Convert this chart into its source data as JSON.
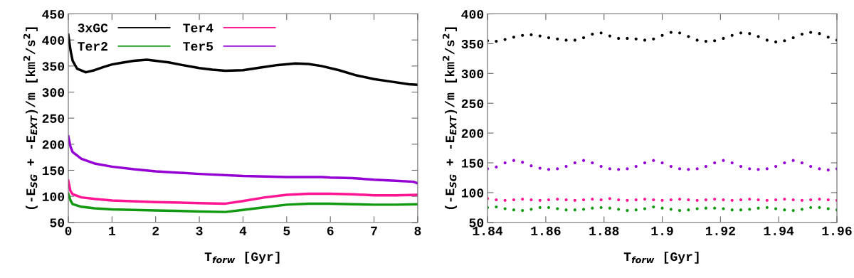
{
  "chart_data": [
    {
      "type": "line",
      "xlabel": "T$_{forw}$ [Gyr]",
      "ylabel": "(-E$_{SG}$ + -E$_{EXT}$)/m [km$^{2}$/s$^{2}$]",
      "xlim": [
        0,
        8
      ],
      "xticks": [
        0,
        1,
        2,
        3,
        4,
        5,
        6,
        7,
        8
      ],
      "ylim": [
        50,
        450
      ],
      "yticks": [
        50,
        100,
        150,
        200,
        250,
        300,
        350,
        400,
        450
      ],
      "grid": false,
      "legend": "top left",
      "marker": "none",
      "line_style": "solid",
      "series": [
        {
          "name": "3xGC",
          "color": "#000000",
          "x": [
            0,
            0.05,
            0.1,
            0.2,
            0.4,
            0.6,
            0.8,
            1.0,
            1.2,
            1.5,
            1.8,
            2.0,
            2.3,
            2.6,
            3.0,
            3.3,
            3.6,
            4.0,
            4.4,
            4.8,
            5.2,
            5.5,
            5.8,
            6.2,
            6.6,
            7.0,
            7.4,
            7.8,
            8.0
          ],
          "values": [
            410,
            380,
            360,
            345,
            338,
            342,
            348,
            353,
            356,
            360,
            362,
            360,
            357,
            352,
            346,
            343,
            341,
            342,
            347,
            352,
            355,
            354,
            350,
            342,
            332,
            325,
            320,
            315,
            314
          ]
        },
        {
          "name": "Ter2",
          "color": "#119911",
          "x": [
            0,
            0.05,
            0.1,
            0.3,
            0.6,
            1,
            2,
            3,
            3.6,
            4.0,
            4.5,
            5.0,
            5.5,
            6.0,
            6.5,
            7.0,
            7.5,
            8.0
          ],
          "values": [
            105,
            92,
            85,
            80,
            77,
            75,
            73,
            71,
            70,
            74,
            79,
            84,
            86,
            86,
            85,
            84,
            84,
            85
          ]
        },
        {
          "name": "Ter4",
          "color": "#ff1493",
          "x": [
            0,
            0.05,
            0.1,
            0.3,
            0.6,
            1,
            2,
            3,
            3.6,
            4.0,
            4.5,
            5.0,
            5.5,
            6.0,
            6.5,
            7.0,
            7.5,
            8.0
          ],
          "values": [
            130,
            110,
            104,
            98,
            95,
            92,
            89,
            87,
            86,
            91,
            98,
            103,
            105,
            105,
            104,
            102,
            102,
            103
          ]
        },
        {
          "name": "Ter5",
          "color": "#9400d3",
          "x": [
            0,
            0.05,
            0.1,
            0.3,
            0.6,
            1.0,
            1.5,
            2.0,
            3.0,
            4.0,
            5.0,
            5.8,
            6.0,
            6.5,
            7.0,
            7.5,
            7.9,
            8.0
          ],
          "values": [
            215,
            195,
            185,
            172,
            163,
            157,
            152,
            148,
            143,
            139,
            137,
            137,
            136,
            135,
            132,
            130,
            128,
            125
          ]
        }
      ]
    },
    {
      "type": "scatter",
      "xlabel": "T$_{forw}$ [Gyr]",
      "ylabel": "(-E$_{SG}$ + -E$_{EXT}$)/m [km$^{2}$/s$^{2}$]",
      "xlim": [
        1.84,
        1.96
      ],
      "xticks": [
        1.84,
        1.86,
        1.88,
        1.9,
        1.92,
        1.94,
        1.96
      ],
      "ylim": [
        50,
        400
      ],
      "yticks": [
        50,
        100,
        150,
        200,
        250,
        300,
        350,
        400
      ],
      "grid": false,
      "marker": "circle",
      "x": [
        1.84,
        1.843,
        1.846,
        1.849,
        1.852,
        1.855,
        1.858,
        1.861,
        1.864,
        1.867,
        1.87,
        1.873,
        1.876,
        1.879,
        1.882,
        1.885,
        1.888,
        1.891,
        1.894,
        1.897,
        1.9,
        1.903,
        1.906,
        1.909,
        1.912,
        1.915,
        1.918,
        1.921,
        1.924,
        1.927,
        1.93,
        1.933,
        1.936,
        1.939,
        1.942,
        1.945,
        1.948,
        1.951,
        1.954,
        1.957,
        1.96
      ],
      "series": [
        {
          "color": "#000000",
          "values": [
            355,
            354,
            357,
            361,
            364,
            365,
            363,
            360,
            358,
            356,
            356,
            360,
            366,
            368,
            363,
            359,
            359,
            358,
            356,
            358,
            364,
            369,
            368,
            362,
            356,
            354,
            355,
            359,
            364,
            368,
            367,
            362,
            356,
            353,
            355,
            360,
            366,
            369,
            367,
            361,
            356
          ]
        },
        {
          "color": "#119911",
          "values": [
            75,
            76,
            73,
            71,
            70,
            72,
            75,
            75,
            73,
            71,
            71,
            72,
            74,
            75,
            74,
            72,
            70,
            71,
            73,
            76,
            74,
            72,
            70,
            71,
            73,
            74,
            74,
            73,
            71,
            71,
            72,
            74,
            75,
            73,
            71,
            70,
            72,
            75,
            75,
            73,
            71
          ]
        },
        {
          "color": "#ff1493",
          "values": [
            90,
            88,
            87,
            88,
            89,
            88,
            87,
            88,
            89,
            88,
            87,
            88,
            89,
            88,
            90,
            88,
            87,
            88,
            89,
            88,
            87,
            88,
            89,
            88,
            87,
            88,
            89,
            88,
            87,
            88,
            89,
            88,
            87,
            88,
            89,
            88,
            87,
            88,
            89,
            88,
            87
          ]
        },
        {
          "color": "#9400d3",
          "values": [
            140,
            143,
            150,
            154,
            151,
            145,
            141,
            139,
            140,
            144,
            150,
            154,
            150,
            144,
            140,
            139,
            140,
            144,
            150,
            154,
            150,
            144,
            140,
            139,
            140,
            144,
            150,
            154,
            150,
            144,
            140,
            139,
            140,
            144,
            150,
            154,
            150,
            144,
            140,
            138,
            140
          ]
        }
      ]
    }
  ]
}
